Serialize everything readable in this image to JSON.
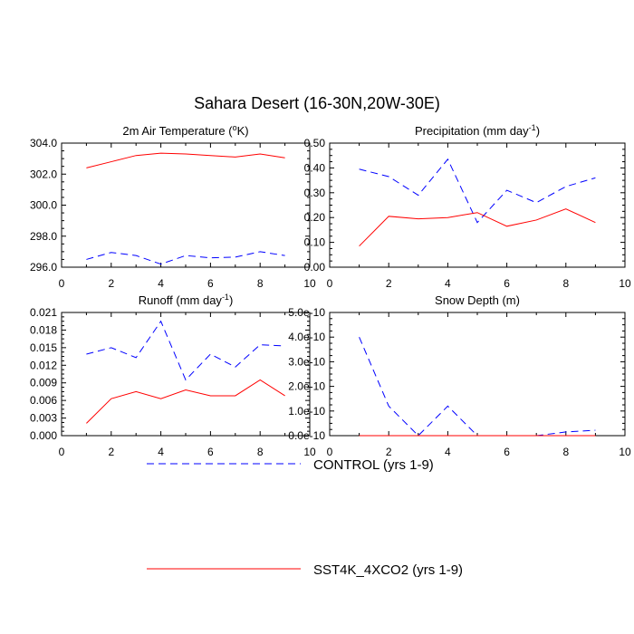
{
  "figure": {
    "title": "Sahara Desert (16-30N,20W-30E)"
  },
  "legend": {
    "entries": [
      {
        "label": "CONTROL (yrs 1-9)",
        "color": "#0000ff",
        "dash": "dashed"
      },
      {
        "label": "SST4K_4XCO2 (yrs 1-9)",
        "color": "#ff0000",
        "dash": "solid"
      }
    ]
  },
  "chart_data": [
    {
      "type": "line",
      "title": "2m Air Temperature (",
      "title_superscript": "o",
      "title_suffix": "K)",
      "xlim": [
        0,
        10
      ],
      "xticks": [
        0,
        2,
        4,
        6,
        8,
        10
      ],
      "xtick_labels": [
        "0",
        "2",
        "4",
        "6",
        "8",
        "10"
      ],
      "ylim": [
        296.0,
        304.0
      ],
      "yticks": [
        296.0,
        298.0,
        300.0,
        302.0,
        304.0
      ],
      "ytick_labels": [
        "296.0",
        "298.0",
        "300.0",
        "302.0",
        "304.0"
      ],
      "x": [
        1,
        2,
        3,
        4,
        5,
        6,
        7,
        8,
        9
      ],
      "series": [
        {
          "name": "CONTROL (yrs 1-9)",
          "color": "#0000ff",
          "dash": "dashed",
          "values": [
            296.5,
            296.95,
            296.75,
            296.2,
            296.75,
            296.6,
            296.65,
            297.0,
            296.75
          ]
        },
        {
          "name": "SST4K_4XCO2 (yrs 1-9)",
          "color": "#ff0000",
          "dash": "solid",
          "values": [
            302.4,
            302.8,
            303.2,
            303.35,
            303.3,
            303.2,
            303.1,
            303.3,
            303.05
          ]
        }
      ]
    },
    {
      "type": "line",
      "title": "Precipitation (mm day",
      "title_superscript": "-1",
      "title_suffix": ")",
      "xlim": [
        0,
        10
      ],
      "xticks": [
        0,
        2,
        4,
        6,
        8,
        10
      ],
      "xtick_labels": [
        "0",
        "2",
        "4",
        "6",
        "8",
        "10"
      ],
      "ylim": [
        0.0,
        0.5
      ],
      "yticks": [
        0.0,
        0.1,
        0.2,
        0.3,
        0.4,
        0.5
      ],
      "ytick_labels": [
        "0.00",
        "0.10",
        "0.20",
        "0.30",
        "0.40",
        "0.50"
      ],
      "x": [
        1,
        2,
        3,
        4,
        5,
        6,
        7,
        8,
        9
      ],
      "series": [
        {
          "name": "CONTROL (yrs 1-9)",
          "color": "#0000ff",
          "dash": "dashed",
          "values": [
            0.395,
            0.365,
            0.29,
            0.435,
            0.18,
            0.31,
            0.26,
            0.325,
            0.36
          ]
        },
        {
          "name": "SST4K_4XCO2 (yrs 1-9)",
          "color": "#ff0000",
          "dash": "solid",
          "values": [
            0.085,
            0.205,
            0.195,
            0.2,
            0.22,
            0.165,
            0.19,
            0.235,
            0.18
          ]
        }
      ]
    },
    {
      "type": "line",
      "title": "Runoff (mm day",
      "title_superscript": "-1",
      "title_suffix": ")",
      "xlim": [
        0,
        10
      ],
      "xticks": [
        0,
        2,
        4,
        6,
        8,
        10
      ],
      "xtick_labels": [
        "0",
        "2",
        "4",
        "6",
        "8",
        "10"
      ],
      "ylim": [
        0.0,
        0.021
      ],
      "yticks": [
        0.0,
        0.003,
        0.006,
        0.009,
        0.012,
        0.015,
        0.018,
        0.021
      ],
      "ytick_labels": [
        "0.000",
        "0.003",
        "0.006",
        "0.009",
        "0.012",
        "0.015",
        "0.018",
        "0.021"
      ],
      "x": [
        1,
        2,
        3,
        4,
        5,
        6,
        7,
        8,
        9
      ],
      "series": [
        {
          "name": "CONTROL (yrs 1-9)",
          "color": "#0000ff",
          "dash": "dashed",
          "values": [
            0.0139,
            0.015,
            0.0133,
            0.0195,
            0.0095,
            0.0139,
            0.0117,
            0.0155,
            0.0153
          ]
        },
        {
          "name": "SST4K_4XCO2 (yrs 1-9)",
          "color": "#ff0000",
          "dash": "solid",
          "values": [
            0.0021,
            0.0063,
            0.0075,
            0.0063,
            0.0078,
            0.0068,
            0.0068,
            0.0095,
            0.0068
          ]
        }
      ]
    },
    {
      "type": "line",
      "title": "Snow Depth (m)",
      "title_superscript": "",
      "title_suffix": "",
      "xlim": [
        0,
        10
      ],
      "xticks": [
        0,
        2,
        4,
        6,
        8,
        10
      ],
      "xtick_labels": [
        "0",
        "2",
        "4",
        "6",
        "8",
        "10"
      ],
      "ylim": [
        0.0,
        5e-10
      ],
      "yticks": [
        0.0,
        1e-10,
        2e-10,
        3e-10,
        4e-10,
        5e-10
      ],
      "ytick_labels": [
        "0.0e-10",
        "1.0e-10",
        "2.0e-10",
        "3.0e-10",
        "4.0e-10",
        "5.0e-10"
      ],
      "x": [
        1,
        2,
        3,
        4,
        5,
        6,
        7,
        8,
        9
      ],
      "series": [
        {
          "name": "CONTROL (yrs 1-9)",
          "color": "#0000ff",
          "dash": "dashed",
          "values": [
            4e-10,
            1.2e-10,
            0.0,
            1.2e-10,
            0.0,
            0.0,
            0.0,
            1.5e-11,
            2.2e-11
          ]
        },
        {
          "name": "SST4K_4XCO2 (yrs 1-9)",
          "color": "#ff0000",
          "dash": "solid",
          "values": [
            0.0,
            0.0,
            0.0,
            0.0,
            0.0,
            0.0,
            0.0,
            0.0,
            0.0
          ]
        }
      ]
    }
  ]
}
